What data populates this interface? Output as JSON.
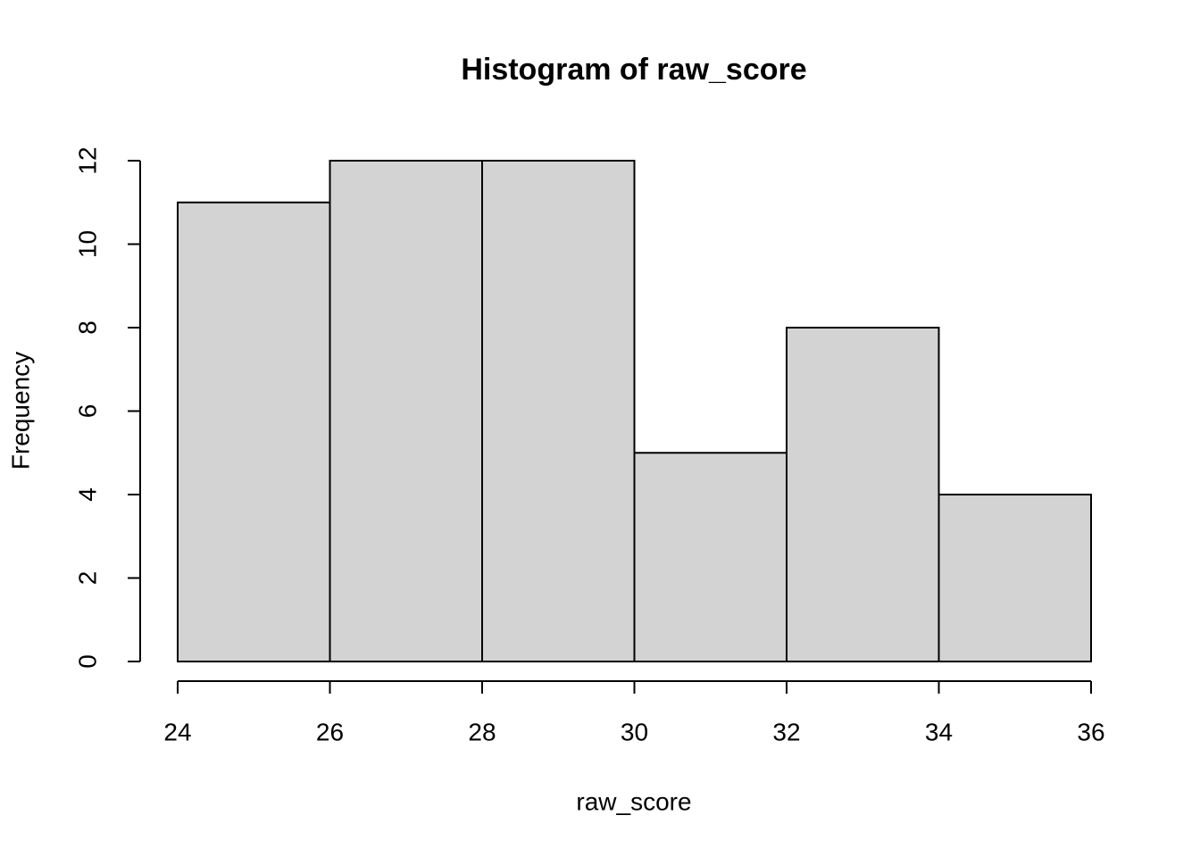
{
  "chart_data": {
    "type": "histogram",
    "title": "Histogram of raw_score",
    "xlabel": "raw_score",
    "ylabel": "Frequency",
    "bins": [
      24,
      26,
      28,
      30,
      32,
      34,
      36
    ],
    "values": [
      11,
      12,
      12,
      5,
      8,
      4
    ],
    "color": "#d3d3d3",
    "xlim": [
      24,
      36
    ],
    "ylim": [
      0,
      12
    ],
    "xticks": [
      24,
      26,
      28,
      30,
      32,
      34,
      36
    ],
    "yticks": [
      0,
      2,
      4,
      6,
      8,
      10,
      12
    ]
  }
}
